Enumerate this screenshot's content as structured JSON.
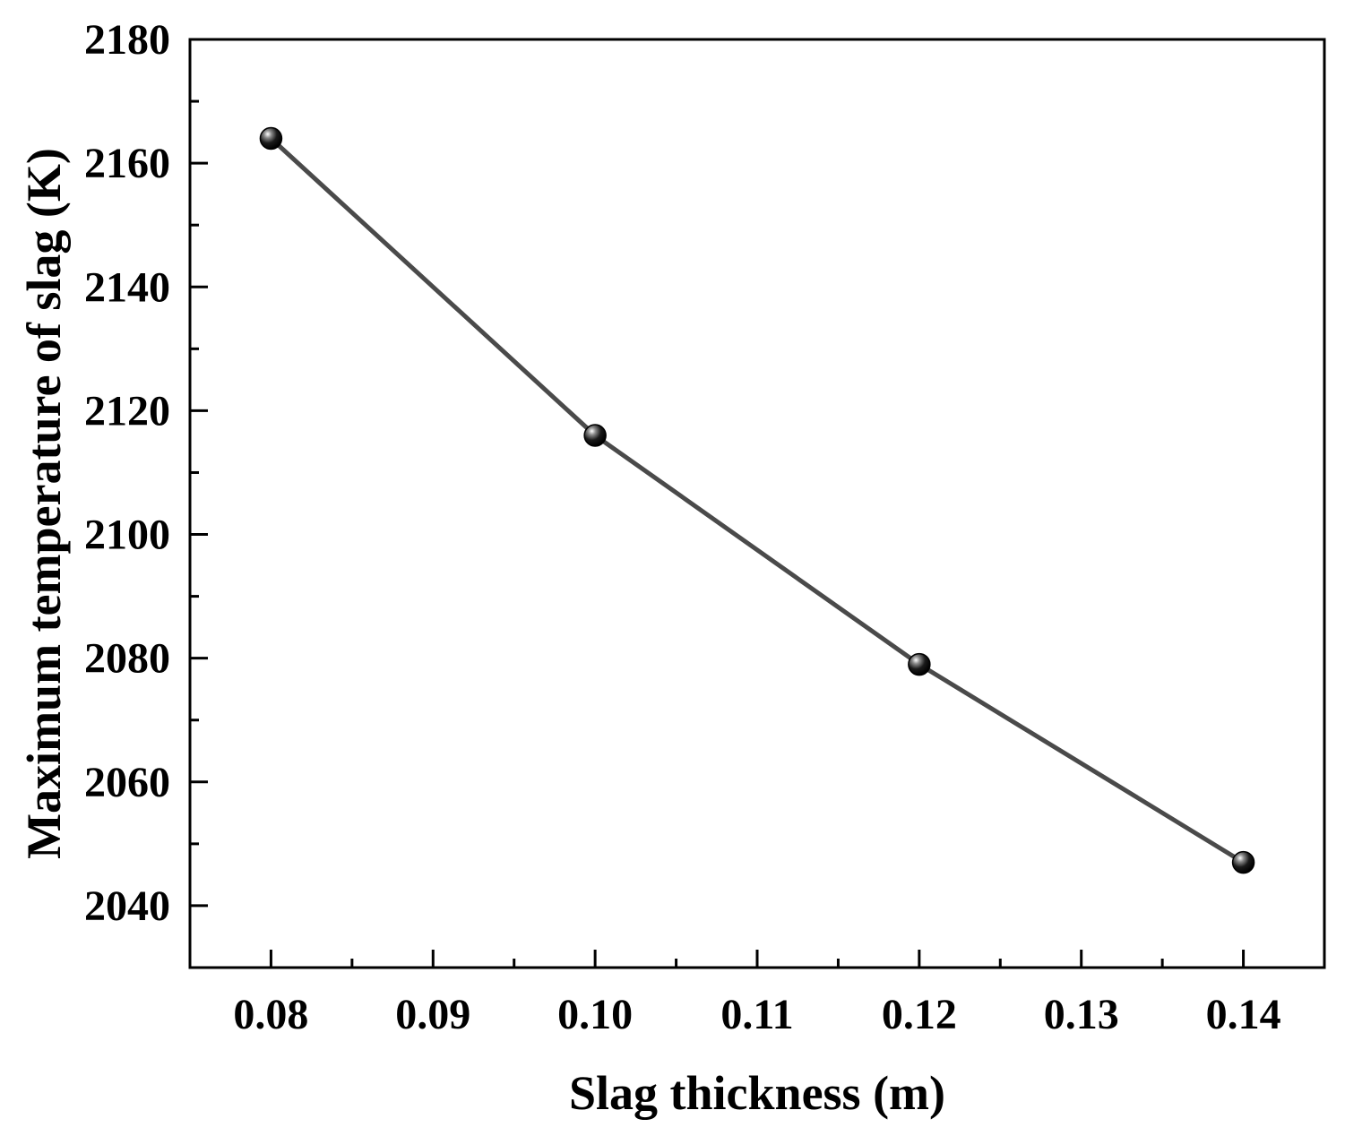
{
  "chart_data": {
    "type": "line",
    "title": "",
    "xlabel": "Slag thickness (m)",
    "ylabel": "Maximum temperature of slag (K)",
    "x": [
      0.08,
      0.1,
      0.12,
      0.14
    ],
    "series": [
      {
        "values": [
          2164,
          2116,
          2079,
          2047
        ]
      }
    ],
    "xlim": [
      0.075,
      0.145
    ],
    "ylim": [
      2030,
      2180
    ],
    "xticks": [
      0.08,
      0.09,
      0.1,
      0.11,
      0.12,
      0.13,
      0.14
    ],
    "xtick_labels": [
      "0.08",
      "0.09",
      "0.10",
      "0.11",
      "0.12",
      "0.13",
      "0.14"
    ],
    "yticks": [
      2040,
      2060,
      2080,
      2100,
      2120,
      2140,
      2160,
      2180
    ],
    "ytick_labels": [
      "2040",
      "2060",
      "2080",
      "2100",
      "2120",
      "2140",
      "2160",
      "2180"
    ],
    "grid": false,
    "legend": "none",
    "line_color": "#4a4a4a",
    "marker_color": "#000000"
  }
}
